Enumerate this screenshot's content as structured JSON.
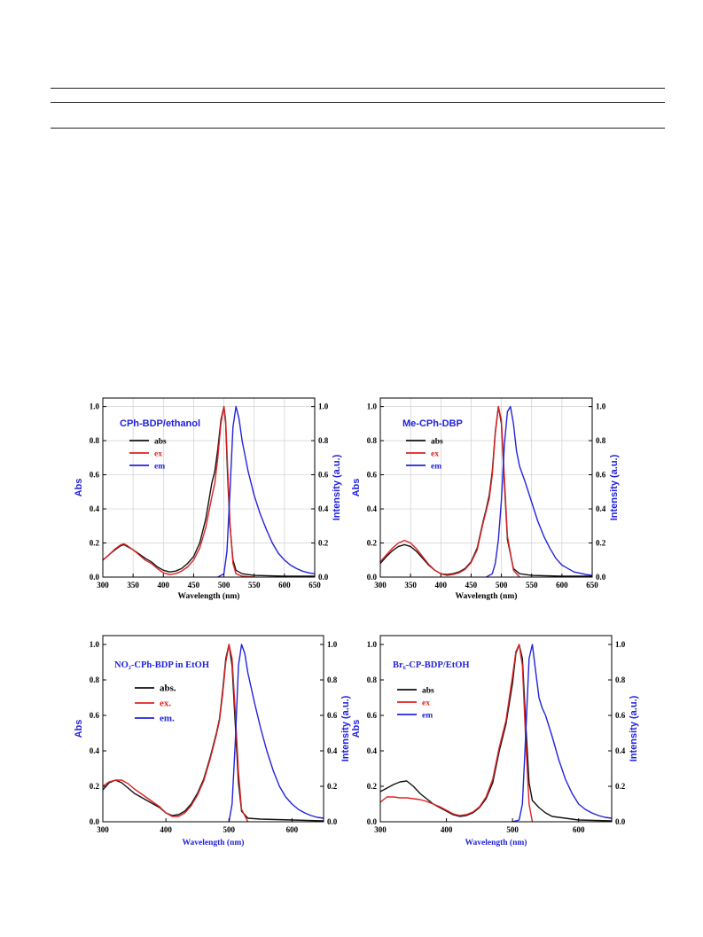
{
  "chart_data": [
    {
      "type": "line",
      "title": "CPh-BDP/ethanol",
      "xlabel": "Wavelength (nm)",
      "ylabel": "Abs",
      "y2label": "Intensity (a.u.)",
      "xlim": [
        300,
        650
      ],
      "ylim": [
        0,
        1.05
      ],
      "xticks": [
        300,
        350,
        400,
        450,
        500,
        550,
        600,
        650
      ],
      "yticks": [
        0.0,
        0.2,
        0.4,
        0.6,
        0.8,
        1.0
      ],
      "y2ticks": [
        0.0,
        0.2,
        0.4,
        0.6,
        0.8,
        1.0
      ],
      "grid": true,
      "legend": "top-left",
      "title_color": "#2222dd",
      "series": [
        {
          "name": "abs",
          "color": "#111111",
          "x": [
            300,
            310,
            320,
            330,
            335,
            340,
            350,
            360,
            370,
            380,
            390,
            400,
            410,
            420,
            430,
            440,
            450,
            460,
            470,
            480,
            485,
            490,
            495,
            500,
            503,
            506,
            510,
            515,
            520,
            530,
            550,
            600,
            650
          ],
          "y": [
            0.1,
            0.13,
            0.16,
            0.185,
            0.19,
            0.18,
            0.16,
            0.135,
            0.11,
            0.09,
            0.06,
            0.04,
            0.03,
            0.035,
            0.05,
            0.08,
            0.12,
            0.2,
            0.34,
            0.55,
            0.62,
            0.75,
            0.92,
            1.0,
            0.9,
            0.6,
            0.3,
            0.1,
            0.04,
            0.02,
            0.01,
            0.005,
            0.005
          ]
        },
        {
          "name": "ex",
          "color": "#dd2222",
          "x": [
            300,
            310,
            320,
            330,
            335,
            340,
            350,
            360,
            370,
            380,
            390,
            400,
            410,
            420,
            430,
            440,
            450,
            460,
            470,
            480,
            485,
            490,
            495,
            500,
            503,
            506,
            510,
            515,
            520,
            530,
            550
          ],
          "y": [
            0.1,
            0.13,
            0.165,
            0.19,
            0.195,
            0.185,
            0.16,
            0.13,
            0.1,
            0.08,
            0.05,
            0.025,
            0.015,
            0.02,
            0.035,
            0.06,
            0.1,
            0.17,
            0.29,
            0.47,
            0.55,
            0.7,
            0.9,
            1.0,
            0.92,
            0.65,
            0.32,
            0.08,
            0.02,
            0.005,
            0.0
          ]
        },
        {
          "name": "em",
          "color": "#2222dd",
          "x": [
            490,
            500,
            505,
            510,
            515,
            520,
            525,
            530,
            540,
            550,
            560,
            570,
            580,
            590,
            600,
            610,
            620,
            630,
            640,
            650
          ],
          "y": [
            0.0,
            0.02,
            0.15,
            0.5,
            0.88,
            1.0,
            0.93,
            0.8,
            0.62,
            0.48,
            0.37,
            0.28,
            0.2,
            0.14,
            0.1,
            0.07,
            0.05,
            0.035,
            0.025,
            0.02
          ]
        }
      ]
    },
    {
      "type": "line",
      "title": "Me-CPh-DBP",
      "xlabel": "Wavelength (nm)",
      "ylabel": "Abs",
      "y2label": "Intensity (a.u.)",
      "xlim": [
        300,
        650
      ],
      "ylim": [
        0,
        1.05
      ],
      "xticks": [
        300,
        350,
        400,
        450,
        500,
        550,
        600,
        650
      ],
      "yticks": [
        0.0,
        0.2,
        0.4,
        0.6,
        0.8,
        1.0
      ],
      "y2ticks": [
        0.0,
        0.2,
        0.4,
        0.6,
        0.8,
        1.0
      ],
      "grid": true,
      "legend": "top-left",
      "title_color": "#2222dd",
      "series": [
        {
          "name": "abs",
          "color": "#111111",
          "x": [
            300,
            310,
            320,
            330,
            340,
            350,
            360,
            370,
            380,
            390,
            400,
            410,
            420,
            430,
            440,
            450,
            460,
            470,
            475,
            480,
            485,
            490,
            495,
            500,
            505,
            510,
            520,
            530,
            550,
            600,
            650
          ],
          "y": [
            0.08,
            0.12,
            0.155,
            0.18,
            0.19,
            0.18,
            0.15,
            0.11,
            0.07,
            0.04,
            0.02,
            0.015,
            0.02,
            0.03,
            0.05,
            0.09,
            0.17,
            0.33,
            0.4,
            0.48,
            0.62,
            0.85,
            1.0,
            0.9,
            0.55,
            0.22,
            0.05,
            0.02,
            0.01,
            0.005,
            0.005
          ]
        },
        {
          "name": "ex",
          "color": "#dd2222",
          "x": [
            300,
            310,
            320,
            330,
            340,
            350,
            360,
            370,
            380,
            390,
            400,
            410,
            420,
            430,
            440,
            450,
            460,
            470,
            475,
            480,
            485,
            490,
            495,
            500,
            505,
            510,
            520,
            530
          ],
          "y": [
            0.09,
            0.13,
            0.17,
            0.2,
            0.215,
            0.2,
            0.165,
            0.12,
            0.075,
            0.04,
            0.02,
            0.01,
            0.015,
            0.025,
            0.045,
            0.085,
            0.16,
            0.32,
            0.39,
            0.46,
            0.6,
            0.84,
            1.0,
            0.92,
            0.58,
            0.24,
            0.04,
            0.0
          ]
        },
        {
          "name": "em",
          "color": "#2222dd",
          "x": [
            475,
            485,
            490,
            495,
            500,
            505,
            510,
            515,
            520,
            525,
            530,
            540,
            550,
            560,
            570,
            580,
            590,
            600,
            620,
            640,
            650
          ],
          "y": [
            0.0,
            0.02,
            0.08,
            0.22,
            0.45,
            0.78,
            0.97,
            1.0,
            0.9,
            0.74,
            0.65,
            0.55,
            0.44,
            0.33,
            0.24,
            0.17,
            0.11,
            0.07,
            0.03,
            0.015,
            0.01
          ]
        }
      ]
    },
    {
      "type": "line",
      "title": "NO₂-CPh-BDP in EtOH",
      "xlabel": "Wavelength (nm)",
      "ylabel": "Abs",
      "y2label": "Intensity (a.u.)",
      "xlim": [
        300,
        650
      ],
      "ylim": [
        0,
        1.05
      ],
      "xticks": [
        300,
        400,
        500,
        600
      ],
      "yticks": [
        0.0,
        0.2,
        0.4,
        0.6,
        0.8,
        1.0
      ],
      "y2ticks": [
        0.0,
        0.2,
        0.4,
        0.6,
        0.8,
        1.0
      ],
      "grid": false,
      "legend": "top-left",
      "title_color": "#2222dd",
      "series": [
        {
          "name": "abs.",
          "color": "#111111",
          "x": [
            300,
            310,
            320,
            330,
            340,
            350,
            360,
            370,
            380,
            390,
            400,
            410,
            420,
            430,
            440,
            450,
            460,
            470,
            480,
            485,
            490,
            495,
            500,
            505,
            510,
            515,
            520,
            530,
            550,
            600,
            650
          ],
          "y": [
            0.18,
            0.22,
            0.235,
            0.22,
            0.19,
            0.16,
            0.14,
            0.12,
            0.1,
            0.08,
            0.05,
            0.035,
            0.04,
            0.06,
            0.1,
            0.16,
            0.24,
            0.36,
            0.5,
            0.58,
            0.74,
            0.92,
            1.0,
            0.88,
            0.55,
            0.22,
            0.06,
            0.02,
            0.015,
            0.01,
            0.005
          ]
        },
        {
          "name": "ex.",
          "color": "#dd2222",
          "x": [
            300,
            310,
            320,
            330,
            340,
            350,
            360,
            370,
            380,
            390,
            400,
            410,
            420,
            430,
            440,
            450,
            460,
            470,
            480,
            485,
            490,
            495,
            500,
            505,
            510,
            515,
            520,
            530
          ],
          "y": [
            0.2,
            0.225,
            0.235,
            0.235,
            0.215,
            0.185,
            0.16,
            0.135,
            0.11,
            0.085,
            0.05,
            0.03,
            0.03,
            0.05,
            0.09,
            0.15,
            0.23,
            0.35,
            0.49,
            0.57,
            0.72,
            0.9,
            1.0,
            0.92,
            0.62,
            0.28,
            0.07,
            0.0
          ]
        },
        {
          "name": "em.",
          "color": "#2222dd",
          "x": [
            500,
            505,
            510,
            515,
            520,
            525,
            530,
            540,
            550,
            560,
            570,
            580,
            590,
            600,
            610,
            620,
            630,
            640,
            650
          ],
          "y": [
            0.0,
            0.1,
            0.45,
            0.88,
            1.0,
            0.95,
            0.84,
            0.68,
            0.53,
            0.4,
            0.29,
            0.2,
            0.14,
            0.1,
            0.07,
            0.05,
            0.035,
            0.025,
            0.02
          ]
        }
      ]
    },
    {
      "type": "line",
      "title": "Br₆-CP-BDP/EtOH",
      "xlabel": "Wavelength (nm)",
      "ylabel": "Abs",
      "y2label": "Intensity (a.u.)",
      "xlim": [
        300,
        650
      ],
      "ylim": [
        0,
        1.05
      ],
      "xticks": [
        300,
        400,
        500,
        600
      ],
      "yticks": [
        0.0,
        0.2,
        0.4,
        0.6,
        0.8,
        1.0
      ],
      "y2ticks": [
        0.0,
        0.2,
        0.4,
        0.6,
        0.8,
        1.0
      ],
      "grid": false,
      "legend": "top-left",
      "title_color": "#2222dd",
      "series": [
        {
          "name": "abs",
          "color": "#111111",
          "x": [
            300,
            310,
            320,
            330,
            340,
            350,
            360,
            370,
            380,
            390,
            400,
            410,
            420,
            430,
            440,
            450,
            460,
            470,
            480,
            490,
            500,
            505,
            510,
            515,
            520,
            525,
            530,
            540,
            550,
            560,
            580,
            600,
            650
          ],
          "y": [
            0.17,
            0.19,
            0.21,
            0.225,
            0.23,
            0.2,
            0.16,
            0.13,
            0.1,
            0.08,
            0.06,
            0.04,
            0.03,
            0.035,
            0.05,
            0.08,
            0.13,
            0.22,
            0.4,
            0.55,
            0.78,
            0.95,
            1.0,
            0.92,
            0.55,
            0.22,
            0.12,
            0.08,
            0.05,
            0.03,
            0.02,
            0.01,
            0.005
          ]
        },
        {
          "name": "ex",
          "color": "#dd2222",
          "x": [
            300,
            310,
            320,
            330,
            340,
            350,
            360,
            370,
            380,
            390,
            400,
            410,
            420,
            430,
            440,
            450,
            460,
            470,
            480,
            490,
            500,
            505,
            510,
            515,
            520,
            525,
            530
          ],
          "y": [
            0.11,
            0.14,
            0.14,
            0.135,
            0.135,
            0.13,
            0.125,
            0.115,
            0.1,
            0.085,
            0.065,
            0.045,
            0.035,
            0.04,
            0.055,
            0.085,
            0.14,
            0.24,
            0.42,
            0.57,
            0.82,
            0.96,
            1.0,
            0.88,
            0.45,
            0.1,
            0.0
          ]
        },
        {
          "name": "em",
          "color": "#2222dd",
          "x": [
            500,
            510,
            515,
            520,
            525,
            530,
            535,
            540,
            545,
            550,
            560,
            570,
            580,
            590,
            600,
            610,
            620,
            630,
            640,
            650
          ],
          "y": [
            0.0,
            0.01,
            0.1,
            0.5,
            0.92,
            1.0,
            0.85,
            0.7,
            0.64,
            0.6,
            0.48,
            0.35,
            0.24,
            0.16,
            0.1,
            0.07,
            0.05,
            0.035,
            0.025,
            0.02
          ]
        }
      ]
    }
  ]
}
